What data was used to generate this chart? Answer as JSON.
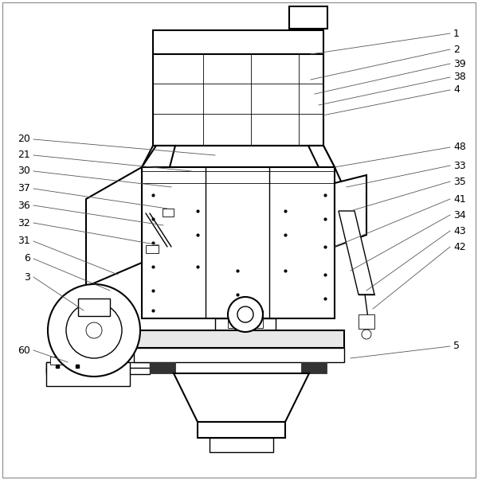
{
  "background_color": "#ffffff",
  "line_color": "#000000",
  "thin_line_color": "#555555",
  "figsize": [
    6.0,
    6.03
  ],
  "dpi": 100,
  "right_labels": [
    [
      "1",
      390,
      68,
      565,
      42
    ],
    [
      "2",
      390,
      100,
      565,
      62
    ],
    [
      "39",
      395,
      118,
      565,
      80
    ],
    [
      "38",
      400,
      132,
      565,
      97
    ],
    [
      "4",
      405,
      145,
      565,
      113
    ],
    [
      "48",
      420,
      210,
      565,
      185
    ],
    [
      "33",
      435,
      235,
      565,
      208
    ],
    [
      "35",
      440,
      265,
      565,
      228
    ],
    [
      "41",
      420,
      310,
      565,
      250
    ],
    [
      "34",
      440,
      340,
      565,
      270
    ],
    [
      "43",
      460,
      365,
      565,
      290
    ],
    [
      "42",
      468,
      388,
      565,
      310
    ],
    [
      "5",
      440,
      450,
      565,
      435
    ]
  ],
  "left_labels": [
    [
      "20",
      270,
      195,
      42,
      175
    ],
    [
      "21",
      240,
      215,
      42,
      195
    ],
    [
      "30",
      215,
      235,
      42,
      215
    ],
    [
      "37",
      210,
      262,
      42,
      237
    ],
    [
      "36",
      205,
      283,
      42,
      258
    ],
    [
      "32",
      200,
      308,
      42,
      280
    ],
    [
      "31",
      148,
      345,
      42,
      303
    ],
    [
      "6",
      138,
      365,
      42,
      325
    ],
    [
      "3",
      105,
      390,
      42,
      348
    ],
    [
      "60",
      85,
      455,
      42,
      440
    ]
  ]
}
